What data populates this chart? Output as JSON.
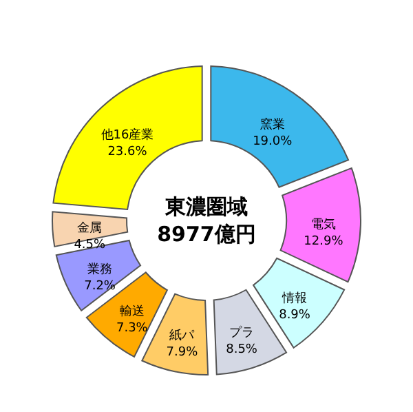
{
  "chart_data": {
    "type": "donut",
    "title": "東濃圏域",
    "subtitle": "8977億円",
    "categories": [
      "窯業",
      "電気",
      "情報",
      "プラ",
      "紙パ",
      "輸送",
      "業務",
      "金属",
      "他16産業"
    ],
    "values": [
      19.0,
      12.9,
      8.9,
      8.5,
      7.9,
      7.3,
      7.2,
      4.5,
      23.6
    ],
    "value_labels": [
      "19.0%",
      "12.9%",
      "8.9%",
      "8.5%",
      "7.9%",
      "7.3%",
      "7.2%",
      "4.5%",
      "23.6%"
    ],
    "colors": [
      "#3cb8ec",
      "#ff77ff",
      "#ccffff",
      "#d4d8e4",
      "#ffcc66",
      "#ffaa00",
      "#9999ff",
      "#f8d4b0",
      "#ffff00"
    ]
  }
}
